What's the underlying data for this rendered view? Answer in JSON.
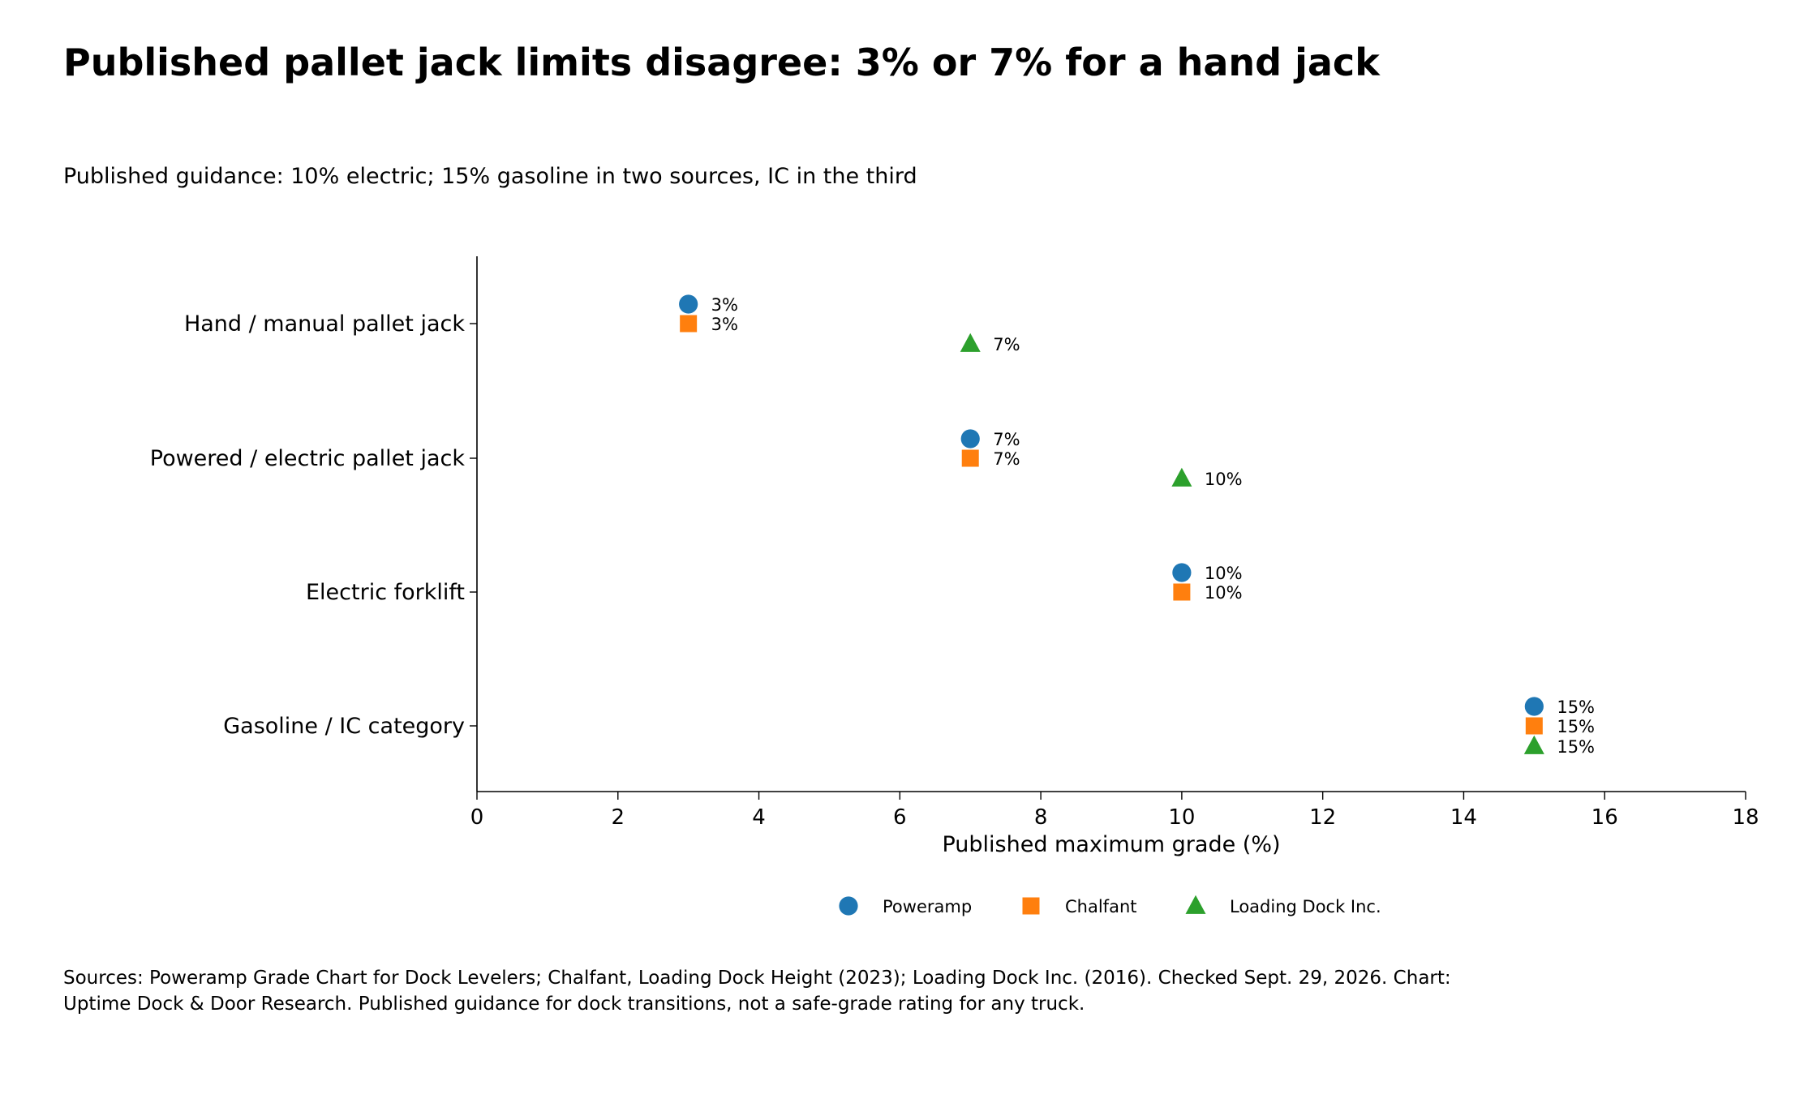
{
  "chart_data": {
    "type": "scatter",
    "title": "Published pallet jack limits disagree: 3% or 7% for a hand jack",
    "subtitle": "Published guidance: 10% electric; 15% gasoline in two sources, IC in the third",
    "xlabel": "Published maximum grade (%)",
    "ylabel": "",
    "xlim": [
      0,
      18
    ],
    "xticks": [
      "0",
      "2",
      "4",
      "6",
      "8",
      "10",
      "12",
      "14",
      "16",
      "18"
    ],
    "categories": [
      "Hand / manual pallet jack",
      "Powered / electric pallet jack",
      "Electric forklift",
      "Gasoline / IC category"
    ],
    "grid": false,
    "legend_position": "bottom-center",
    "series": [
      {
        "name": "Poweramp",
        "marker": "circle",
        "color": "#1f77b4",
        "values": [
          3,
          7,
          10,
          15
        ],
        "labels": [
          "3%",
          "7%",
          "10%",
          "15%"
        ]
      },
      {
        "name": "Chalfant",
        "marker": "square",
        "color": "#ff7f0e",
        "values": [
          3,
          7,
          10,
          15
        ],
        "labels": [
          "3%",
          "7%",
          "10%",
          "15%"
        ]
      },
      {
        "name": "Loading Dock Inc.",
        "marker": "triangle",
        "color": "#2ca02c",
        "values": [
          7,
          10,
          null,
          15
        ],
        "labels": [
          "7%",
          "10%",
          "",
          "15%"
        ]
      }
    ],
    "footnote": [
      "Sources: Poweramp Grade Chart for Dock Levelers; Chalfant, Loading Dock Height (2023); Loading Dock Inc. (2016). Checked Sept. 29, 2026. Chart:",
      "Uptime Dock & Door Research. Published guidance for dock transitions, not a safe-grade rating for any truck."
    ]
  }
}
